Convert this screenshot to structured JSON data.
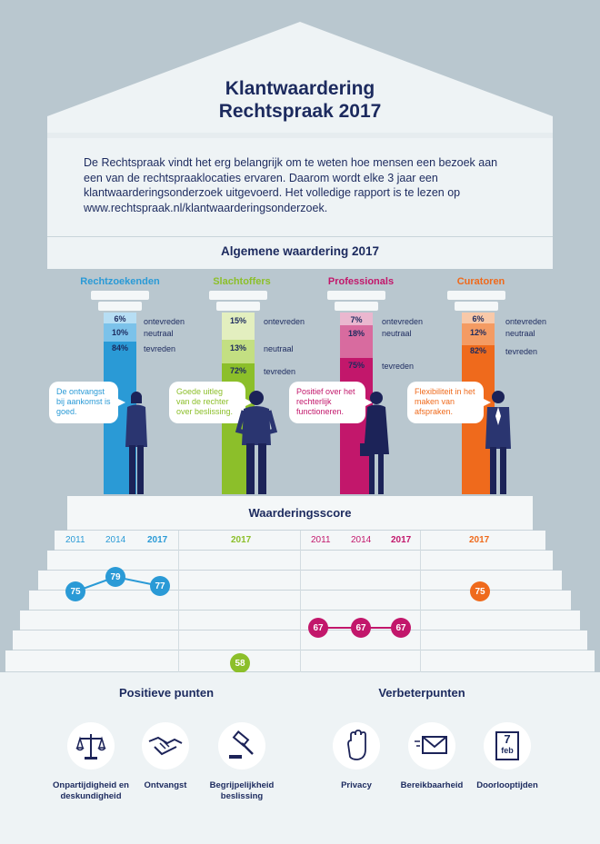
{
  "header": {
    "title_line1": "Klantwaardering",
    "title_line2": "Rechtspraak 2017"
  },
  "intro": "De Rechtspraak vindt het erg belangrijk om te weten hoe mensen een bezoek aan een van de rechtspraaklocaties ervaren. Daarom wordt elke 3 jaar een klantwaarderingsonderzoek uitgevoerd. Het volledige rapport is te lezen op www.rechtspraak.nl/klantwaarderingsonderzoek.",
  "general_title": "Algemene waardering 2017",
  "categories": [
    {
      "name": "Rechtzoekenden",
      "color": "#2a9ad6",
      "values": [
        {
          "pct": "6%",
          "label": "ontevreden"
        },
        {
          "pct": "10%",
          "label": "neutraal"
        },
        {
          "pct": "84%",
          "label": "tevreden"
        }
      ],
      "quote": "De ontvangst bij aankomst is goed."
    },
    {
      "name": "Slachtoffers",
      "color": "#8cbf2a",
      "values": [
        {
          "pct": "15%",
          "label": "ontevreden"
        },
        {
          "pct": "13%",
          "label": "neutraal"
        },
        {
          "pct": "72%",
          "label": "tevreden"
        }
      ],
      "quote": "Goede uitleg van de rechter over beslissing."
    },
    {
      "name": "Professionals",
      "color": "#c2176b",
      "values": [
        {
          "pct": "7%",
          "label": "ontevreden"
        },
        {
          "pct": "18%",
          "label": "neutraal"
        },
        {
          "pct": "75%",
          "label": "tevreden"
        }
      ],
      "quote": "Positief over het rechterlijk functioneren."
    },
    {
      "name": "Curatoren",
      "color": "#ef6a1c",
      "values": [
        {
          "pct": "6%",
          "label": "ontevreden"
        },
        {
          "pct": "12%",
          "label": "neutraal"
        },
        {
          "pct": "82%",
          "label": "tevreden"
        }
      ],
      "quote": "Flexibiliteit in het maken van afspraken."
    }
  ],
  "score_title": "Waarderingsscore",
  "years": {
    "rz": [
      "2011",
      "2014",
      "2017"
    ],
    "sl": [
      "2017"
    ],
    "pr": [
      "2011",
      "2014",
      "2017"
    ],
    "cu": [
      "2017"
    ]
  },
  "scores": {
    "rz": [
      "75",
      "79",
      "77"
    ],
    "sl": [
      "58"
    ],
    "pr": [
      "67",
      "67",
      "67"
    ],
    "cu": [
      "75"
    ]
  },
  "positive": {
    "title": "Positieve punten",
    "items": [
      {
        "icon": "scales-icon",
        "label_line1": "Onpartijdigheid en",
        "label_line2": "deskundigheid"
      },
      {
        "icon": "handshake-icon",
        "label_line1": "Ontvangst",
        "label_line2": ""
      },
      {
        "icon": "gavel-icon",
        "label_line1": "Begrijpelijkheid",
        "label_line2": "beslissing"
      }
    ]
  },
  "improve": {
    "title": "Verbeterpunten",
    "items": [
      {
        "icon": "hand-stop-icon",
        "label_line1": "Privacy"
      },
      {
        "icon": "envelope-icon",
        "label_line1": "Bereikbaarheid"
      },
      {
        "icon": "calendar-icon",
        "label_line1": "Doorlooptijden",
        "cal_day": "7",
        "cal_month": "feb"
      }
    ]
  }
}
